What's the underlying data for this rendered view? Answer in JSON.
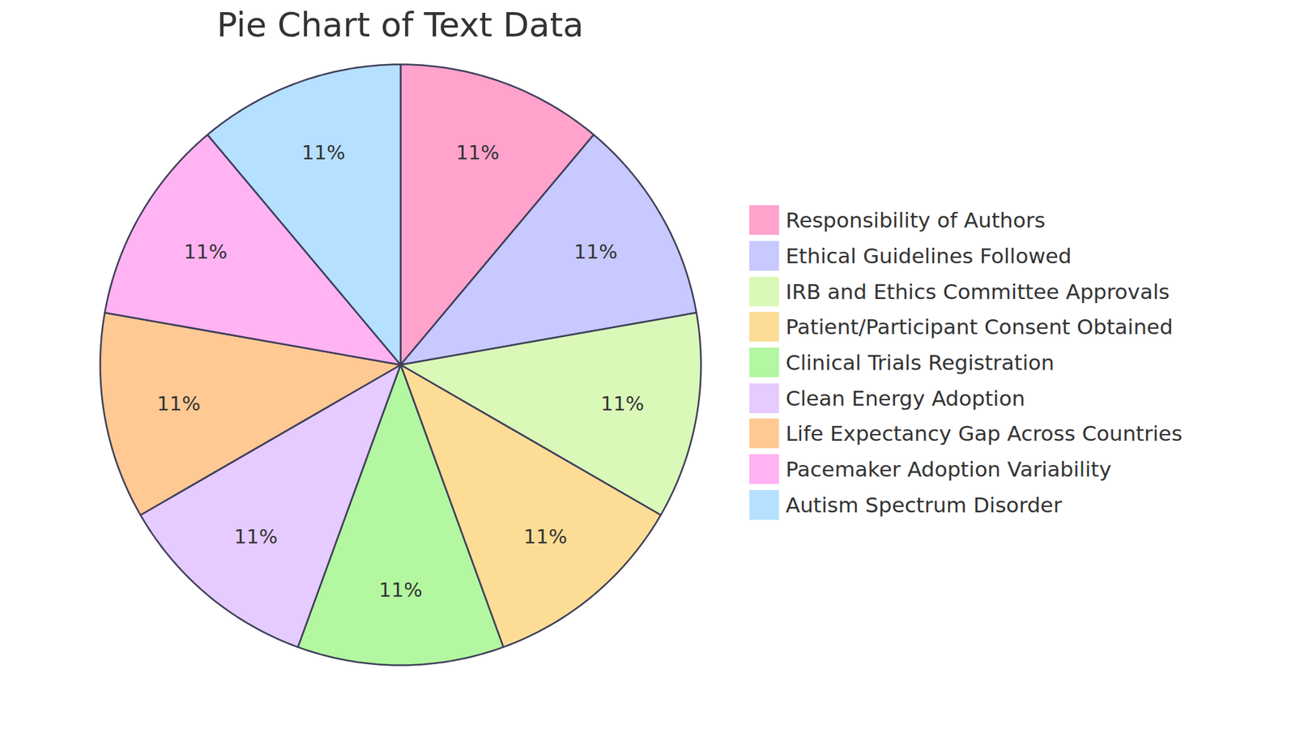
{
  "chart_data": {
    "type": "pie",
    "title": "Pie Chart of Text Data",
    "categories": [
      "Responsibility of Authors",
      "Ethical Guidelines Followed",
      "IRB and Ethics Committee Approvals",
      "Patient/Participant Consent Obtained",
      "Clinical Trials Registration",
      "Clean Energy Adoption",
      "Life Expectancy Gap Across Countries",
      "Pacemaker Adoption Variability",
      "Autism Spectrum Disorder"
    ],
    "values": [
      11,
      11,
      11,
      11,
      11,
      11,
      11,
      11,
      11
    ],
    "value_labels": [
      "11%",
      "11%",
      "11%",
      "11%",
      "11%",
      "11%",
      "11%",
      "11%",
      "11%"
    ],
    "colors": [
      "#ffa3cc",
      "#c7c9ff",
      "#daf9b9",
      "#fddd95",
      "#b3f7a0",
      "#e5cbff",
      "#ffc994",
      "#ffb3f2",
      "#b6e0ff"
    ],
    "data_labels": true,
    "legend": "right"
  }
}
